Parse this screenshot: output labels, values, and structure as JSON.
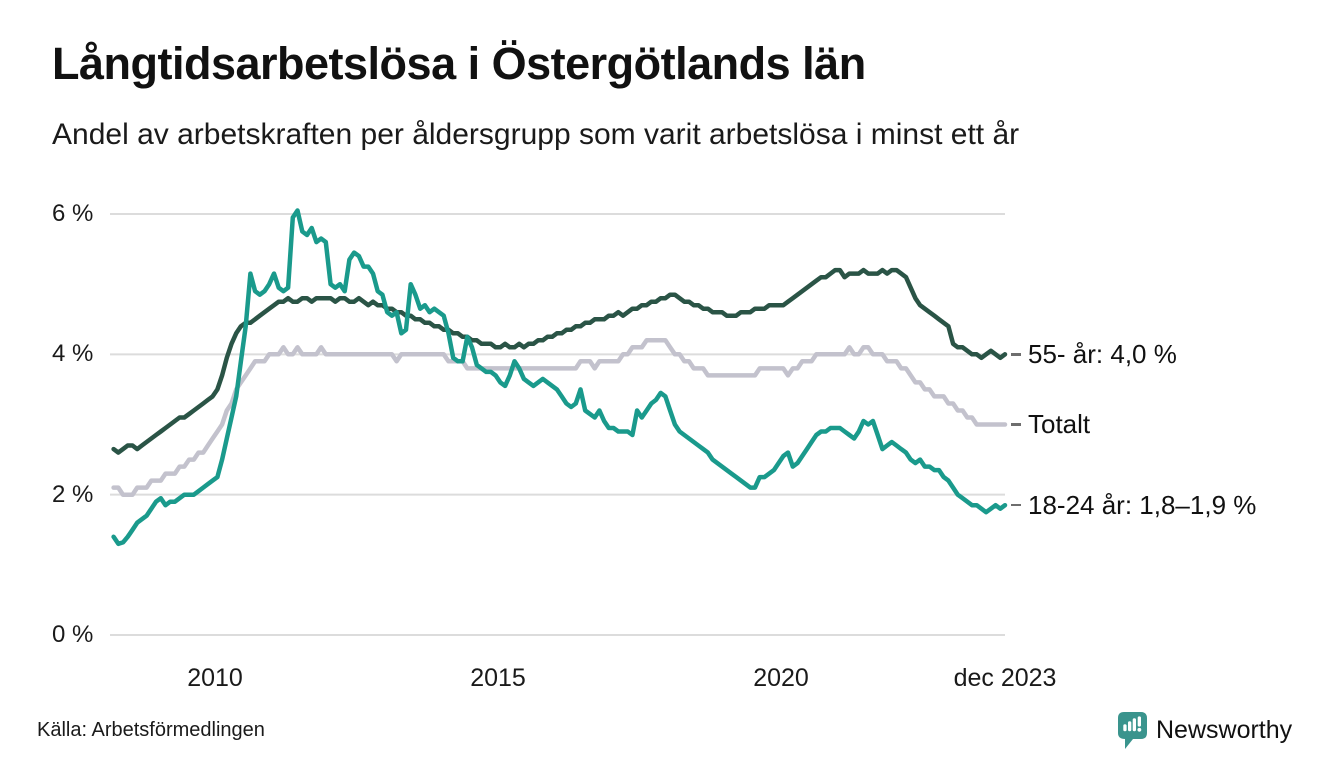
{
  "title": "Långtidsarbetslösa i Östergötlands län",
  "subtitle": "Andel av arbetskraften per åldersgrupp som varit arbetslösa i minst ett år",
  "source": "Källa: Arbetsförmedlingen",
  "branding": {
    "logo_text": "Newsworthy",
    "logo_icon": "bar-chart-pin-icon",
    "color": "#3a948d"
  },
  "colors": {
    "series_55": "#2a5446",
    "series_total": "#c3c2cd",
    "series_1824": "#1a9a8c",
    "gridline": "#dcdcdc",
    "text": "#1a1a1a",
    "label_dash": "#6e6e6e"
  },
  "y_axis": {
    "ticks": [
      {
        "label": "6 %",
        "value": 6
      },
      {
        "label": "4 %",
        "value": 4
      },
      {
        "label": "2 %",
        "value": 2
      },
      {
        "label": "0 %",
        "value": 0
      }
    ]
  },
  "x_axis": {
    "ticks": [
      {
        "label": "2010",
        "year": 2010.0
      },
      {
        "label": "2015",
        "year": 2015.0
      },
      {
        "label": "2020",
        "year": 2020.0
      },
      {
        "label": "dec 2023",
        "year": 2023.958
      }
    ]
  },
  "series_labels": [
    {
      "text": "55- år: 4,0 %"
    },
    {
      "text": "Totalt"
    },
    {
      "text": "18-24 år: 1,8–1,9 %"
    }
  ],
  "chart_data": {
    "type": "line",
    "unit": "%",
    "frequency": "monthly",
    "x_start": "2008-03",
    "x_end": "2023-12",
    "x_start_year": 2008.208,
    "x_end_year": 2023.958,
    "ylim": [
      0,
      6.4
    ],
    "grid": "horizontal",
    "legend_position": "right-of-line",
    "series": [
      {
        "name": "55- år",
        "color_key": "series_55",
        "end_label": "55- år: 4,0 %",
        "values": [
          2.65,
          2.6,
          2.65,
          2.7,
          2.7,
          2.65,
          2.7,
          2.75,
          2.8,
          2.85,
          2.9,
          2.95,
          3.0,
          3.05,
          3.1,
          3.1,
          3.15,
          3.2,
          3.25,
          3.3,
          3.35,
          3.4,
          3.5,
          3.7,
          3.95,
          4.15,
          4.3,
          4.4,
          4.45,
          4.45,
          4.5,
          4.55,
          4.6,
          4.65,
          4.7,
          4.75,
          4.75,
          4.8,
          4.75,
          4.75,
          4.8,
          4.8,
          4.75,
          4.8,
          4.8,
          4.8,
          4.8,
          4.75,
          4.8,
          4.8,
          4.75,
          4.75,
          4.8,
          4.75,
          4.7,
          4.75,
          4.7,
          4.7,
          4.65,
          4.65,
          4.6,
          4.6,
          4.55,
          4.55,
          4.5,
          4.5,
          4.45,
          4.45,
          4.4,
          4.4,
          4.35,
          4.35,
          4.3,
          4.3,
          4.25,
          4.25,
          4.2,
          4.2,
          4.15,
          4.15,
          4.15,
          4.1,
          4.1,
          4.15,
          4.1,
          4.1,
          4.15,
          4.1,
          4.15,
          4.15,
          4.2,
          4.2,
          4.25,
          4.25,
          4.3,
          4.3,
          4.35,
          4.35,
          4.4,
          4.4,
          4.45,
          4.45,
          4.5,
          4.5,
          4.5,
          4.55,
          4.55,
          4.6,
          4.55,
          4.6,
          4.65,
          4.65,
          4.7,
          4.7,
          4.75,
          4.75,
          4.8,
          4.8,
          4.85,
          4.85,
          4.8,
          4.75,
          4.75,
          4.7,
          4.7,
          4.65,
          4.65,
          4.6,
          4.6,
          4.6,
          4.55,
          4.55,
          4.55,
          4.6,
          4.6,
          4.6,
          4.65,
          4.65,
          4.65,
          4.7,
          4.7,
          4.7,
          4.7,
          4.75,
          4.8,
          4.85,
          4.9,
          4.95,
          5.0,
          5.05,
          5.1,
          5.1,
          5.15,
          5.2,
          5.2,
          5.1,
          5.15,
          5.15,
          5.15,
          5.2,
          5.15,
          5.15,
          5.15,
          5.2,
          5.15,
          5.2,
          5.2,
          5.15,
          5.1,
          4.95,
          4.8,
          4.7,
          4.65,
          4.6,
          4.55,
          4.5,
          4.45,
          4.4,
          4.15,
          4.1,
          4.1,
          4.05,
          4.0,
          4.0,
          3.95,
          4.0,
          4.05,
          4.0,
          3.95,
          4.0
        ]
      },
      {
        "name": "Totalt",
        "color_key": "series_total",
        "end_label": "Totalt",
        "values": [
          2.1,
          2.1,
          2.0,
          2.0,
          2.0,
          2.1,
          2.1,
          2.1,
          2.2,
          2.2,
          2.2,
          2.3,
          2.3,
          2.3,
          2.4,
          2.4,
          2.5,
          2.5,
          2.6,
          2.6,
          2.7,
          2.8,
          2.9,
          3.0,
          3.2,
          3.3,
          3.5,
          3.6,
          3.7,
          3.8,
          3.9,
          3.9,
          3.9,
          4.0,
          4.0,
          4.0,
          4.1,
          4.0,
          4.0,
          4.1,
          4.0,
          4.0,
          4.0,
          4.0,
          4.1,
          4.0,
          4.0,
          4.0,
          4.0,
          4.0,
          4.0,
          4.0,
          4.0,
          4.0,
          4.0,
          4.0,
          4.0,
          4.0,
          4.0,
          4.0,
          3.9,
          4.0,
          4.0,
          4.0,
          4.0,
          4.0,
          4.0,
          4.0,
          4.0,
          4.0,
          4.0,
          3.9,
          3.9,
          3.9,
          3.9,
          3.8,
          3.8,
          3.8,
          3.8,
          3.8,
          3.8,
          3.8,
          3.8,
          3.8,
          3.8,
          3.8,
          3.8,
          3.8,
          3.8,
          3.8,
          3.8,
          3.8,
          3.8,
          3.8,
          3.8,
          3.8,
          3.8,
          3.8,
          3.8,
          3.9,
          3.9,
          3.9,
          3.8,
          3.9,
          3.9,
          3.9,
          3.9,
          3.9,
          4.0,
          4.0,
          4.1,
          4.1,
          4.1,
          4.2,
          4.2,
          4.2,
          4.2,
          4.2,
          4.1,
          4.0,
          4.0,
          3.9,
          3.9,
          3.8,
          3.8,
          3.8,
          3.7,
          3.7,
          3.7,
          3.7,
          3.7,
          3.7,
          3.7,
          3.7,
          3.7,
          3.7,
          3.7,
          3.8,
          3.8,
          3.8,
          3.8,
          3.8,
          3.8,
          3.7,
          3.8,
          3.8,
          3.9,
          3.9,
          3.9,
          4.0,
          4.0,
          4.0,
          4.0,
          4.0,
          4.0,
          4.0,
          4.1,
          4.0,
          4.0,
          4.1,
          4.1,
          4.0,
          4.0,
          4.0,
          3.9,
          3.9,
          3.9,
          3.8,
          3.8,
          3.7,
          3.6,
          3.6,
          3.5,
          3.5,
          3.4,
          3.4,
          3.4,
          3.3,
          3.3,
          3.2,
          3.2,
          3.1,
          3.1,
          3.0,
          3.0,
          3.0,
          3.0,
          3.0,
          3.0,
          3.0
        ]
      },
      {
        "name": "18-24 år",
        "color_key": "series_1824",
        "end_label": "18-24 år: 1,8–1,9 %",
        "values": [
          1.4,
          1.3,
          1.32,
          1.4,
          1.5,
          1.6,
          1.65,
          1.7,
          1.8,
          1.9,
          1.95,
          1.85,
          1.9,
          1.9,
          1.95,
          2.0,
          2.0,
          2.0,
          2.05,
          2.1,
          2.15,
          2.2,
          2.25,
          2.5,
          2.8,
          3.1,
          3.4,
          3.9,
          4.4,
          5.15,
          4.9,
          4.85,
          4.9,
          5.0,
          5.15,
          4.95,
          4.9,
          4.95,
          5.95,
          6.05,
          5.75,
          5.7,
          5.8,
          5.6,
          5.65,
          5.6,
          5.0,
          4.95,
          5.0,
          4.9,
          5.35,
          5.45,
          5.4,
          5.25,
          5.25,
          5.15,
          4.9,
          4.85,
          4.6,
          4.55,
          4.6,
          4.3,
          4.35,
          5.0,
          4.85,
          4.65,
          4.7,
          4.6,
          4.65,
          4.6,
          4.55,
          4.3,
          3.95,
          3.9,
          3.9,
          4.25,
          4.1,
          3.85,
          3.8,
          3.75,
          3.75,
          3.7,
          3.6,
          3.55,
          3.7,
          3.9,
          3.8,
          3.65,
          3.6,
          3.55,
          3.6,
          3.65,
          3.6,
          3.55,
          3.5,
          3.4,
          3.3,
          3.25,
          3.3,
          3.5,
          3.2,
          3.15,
          3.1,
          3.2,
          3.05,
          2.95,
          2.95,
          2.9,
          2.9,
          2.9,
          2.85,
          3.2,
          3.1,
          3.2,
          3.3,
          3.35,
          3.45,
          3.4,
          3.2,
          3.0,
          2.9,
          2.85,
          2.8,
          2.75,
          2.7,
          2.65,
          2.6,
          2.5,
          2.45,
          2.4,
          2.35,
          2.3,
          2.25,
          2.2,
          2.15,
          2.1,
          2.1,
          2.25,
          2.25,
          2.3,
          2.35,
          2.45,
          2.55,
          2.6,
          2.4,
          2.45,
          2.55,
          2.65,
          2.75,
          2.85,
          2.9,
          2.9,
          2.95,
          2.95,
          2.95,
          2.9,
          2.85,
          2.8,
          2.9,
          3.05,
          3.0,
          3.05,
          2.85,
          2.65,
          2.7,
          2.75,
          2.7,
          2.65,
          2.6,
          2.5,
          2.45,
          2.5,
          2.4,
          2.4,
          2.35,
          2.35,
          2.25,
          2.2,
          2.1,
          2.0,
          1.95,
          1.9,
          1.85,
          1.85,
          1.8,
          1.75,
          1.8,
          1.85,
          1.8,
          1.85
        ]
      }
    ]
  }
}
